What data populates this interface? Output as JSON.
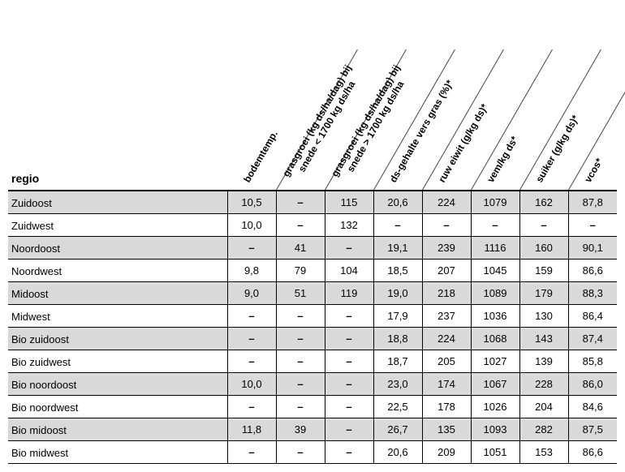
{
  "table": {
    "row_header": "regio",
    "columns": [
      "bodemtemp.",
      "grasgroei (kg ds/ha/dag) bij\nsnede < 1700 kg ds/ha",
      "grasgroei (kg ds/ha/dag) bij\nsnede > 1700 kg ds/ha",
      "ds-gehalte vers gras (%)*",
      "ruw eiwit (g/kg ds)*",
      "vem/kg ds*",
      "suiker (g/kg ds)*",
      "vcos*"
    ],
    "rows": [
      {
        "regio": "Zuidoost",
        "vals": [
          "10,5",
          "–",
          "115",
          "20,6",
          "224",
          "1079",
          "162",
          "87,8"
        ]
      },
      {
        "regio": "Zuidwest",
        "vals": [
          "10,0",
          "–",
          "132",
          "–",
          "–",
          "–",
          "–",
          "–"
        ]
      },
      {
        "regio": "Noordoost",
        "vals": [
          "–",
          "41",
          "–",
          "19,1",
          "239",
          "1116",
          "160",
          "90,1"
        ]
      },
      {
        "regio": "Noordwest",
        "vals": [
          "9,8",
          "79",
          "104",
          "18,5",
          "207",
          "1045",
          "159",
          "86,6"
        ]
      },
      {
        "regio": "Midoost",
        "vals": [
          "9,0",
          "51",
          "119",
          "19,0",
          "218",
          "1089",
          "179",
          "88,3"
        ]
      },
      {
        "regio": "Midwest",
        "vals": [
          "–",
          "–",
          "–",
          "17,9",
          "237",
          "1036",
          "130",
          "86,4"
        ]
      },
      {
        "regio": "Bio zuidoost",
        "vals": [
          "–",
          "–",
          "–",
          "18,8",
          "224",
          "1068",
          "143",
          "87,4"
        ]
      },
      {
        "regio": "Bio zuidwest",
        "vals": [
          "–",
          "–",
          "–",
          "18,7",
          "205",
          "1027",
          "139",
          "85,8"
        ]
      },
      {
        "regio": "Bio noordoost",
        "vals": [
          "10,0",
          "–",
          "–",
          "23,0",
          "174",
          "1067",
          "228",
          "86,0"
        ]
      },
      {
        "regio": "Bio noordwest",
        "vals": [
          "–",
          "–",
          "–",
          "22,5",
          "178",
          "1026",
          "204",
          "84,6"
        ]
      },
      {
        "regio": "Bio midoost",
        "vals": [
          "11,8",
          "39",
          "–",
          "26,7",
          "135",
          "1093",
          "282",
          "87,5"
        ]
      },
      {
        "regio": "Bio midwest",
        "vals": [
          "–",
          "–",
          "–",
          "20,6",
          "209",
          "1051",
          "153",
          "86,6"
        ]
      }
    ],
    "style": {
      "alt_row_bg": "#d9d9d9",
      "border_color": "#000000",
      "font_family": "Arial",
      "header_rotation_deg": -60,
      "dash_glyph": "–",
      "header_fontsize_pt": 12,
      "cell_fontsize_pt": 13,
      "first_row_shaded": true
    }
  }
}
